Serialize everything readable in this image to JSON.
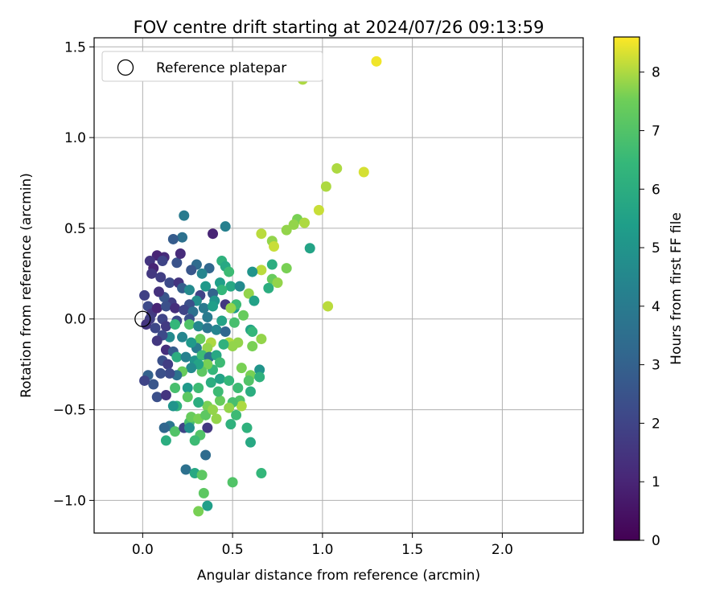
{
  "chart_data": {
    "type": "scatter",
    "title": "FOV centre drift starting at 2024/07/26 09:13:59",
    "xlabel": "Angular distance from reference (arcmin)",
    "ylabel": "Rotation from reference (arcmin)",
    "xlim": [
      -0.27,
      2.45
    ],
    "ylim": [
      -1.18,
      1.55
    ],
    "xticks": [
      0.0,
      0.5,
      1.0,
      1.5,
      2.0
    ],
    "xtick_labels": [
      "0.0",
      "0.5",
      "1.0",
      "1.5",
      "2.0"
    ],
    "yticks": [
      -1.0,
      -0.5,
      0.0,
      0.5,
      1.0,
      1.5
    ],
    "ytick_labels": [
      "−1.0",
      "−0.5",
      "0.0",
      "0.5",
      "1.0",
      "1.5"
    ],
    "grid": true,
    "legend": {
      "position": "top-left",
      "entries": [
        "Reference platepar"
      ]
    },
    "reference_point": {
      "x": 0.0,
      "y": 0.0
    },
    "colorbar": {
      "label": "Hours from first FF file",
      "range": [
        0,
        8.6
      ],
      "ticks": [
        0,
        1,
        2,
        3,
        4,
        5,
        6,
        7,
        8
      ],
      "tick_labels": [
        "0",
        "1",
        "2",
        "3",
        "4",
        "5",
        "6",
        "7",
        "8"
      ],
      "colormap": "viridis"
    },
    "points": [
      {
        "x": 1.3,
        "y": 1.42,
        "h": 8.5
      },
      {
        "x": 0.89,
        "y": 1.32,
        "h": 8.0
      },
      {
        "x": 1.08,
        "y": 0.83,
        "h": 8.0
      },
      {
        "x": 1.23,
        "y": 0.81,
        "h": 8.3
      },
      {
        "x": 1.02,
        "y": 0.73,
        "h": 8.0
      },
      {
        "x": 0.98,
        "y": 0.6,
        "h": 8.2
      },
      {
        "x": 0.86,
        "y": 0.55,
        "h": 7.6
      },
      {
        "x": 0.9,
        "y": 0.53,
        "h": 8.0
      },
      {
        "x": 0.84,
        "y": 0.52,
        "h": 7.8
      },
      {
        "x": 0.8,
        "y": 0.49,
        "h": 7.8
      },
      {
        "x": 0.66,
        "y": 0.47,
        "h": 8.1
      },
      {
        "x": 0.72,
        "y": 0.43,
        "h": 7.8
      },
      {
        "x": 0.73,
        "y": 0.4,
        "h": 8.2
      },
      {
        "x": 0.93,
        "y": 0.39,
        "h": 5.6
      },
      {
        "x": 0.72,
        "y": 0.3,
        "h": 6.0
      },
      {
        "x": 0.8,
        "y": 0.28,
        "h": 7.6
      },
      {
        "x": 0.66,
        "y": 0.27,
        "h": 8.1
      },
      {
        "x": 0.61,
        "y": 0.26,
        "h": 5.0
      },
      {
        "x": 0.72,
        "y": 0.22,
        "h": 7.4
      },
      {
        "x": 0.75,
        "y": 0.2,
        "h": 7.8
      },
      {
        "x": 0.7,
        "y": 0.17,
        "h": 6.0
      },
      {
        "x": 0.59,
        "y": 0.14,
        "h": 7.8
      },
      {
        "x": 0.62,
        "y": 0.1,
        "h": 5.5
      },
      {
        "x": 1.03,
        "y": 0.07,
        "h": 8.1
      },
      {
        "x": 0.46,
        "y": 0.51,
        "h": 4.2
      },
      {
        "x": 0.23,
        "y": 0.57,
        "h": 4.0
      },
      {
        "x": 0.22,
        "y": 0.45,
        "h": 3.6
      },
      {
        "x": 0.17,
        "y": 0.44,
        "h": 2.8
      },
      {
        "x": 0.39,
        "y": 0.47,
        "h": 1.0
      },
      {
        "x": 0.44,
        "y": 0.32,
        "h": 6.2
      },
      {
        "x": 0.46,
        "y": 0.29,
        "h": 5.8
      },
      {
        "x": 0.48,
        "y": 0.26,
        "h": 6.6
      },
      {
        "x": 0.37,
        "y": 0.28,
        "h": 3.2
      },
      {
        "x": 0.3,
        "y": 0.3,
        "h": 3.4
      },
      {
        "x": 0.27,
        "y": 0.27,
        "h": 2.6
      },
      {
        "x": 0.19,
        "y": 0.31,
        "h": 2.5
      },
      {
        "x": 0.21,
        "y": 0.36,
        "h": 1.2
      },
      {
        "x": 0.12,
        "y": 0.34,
        "h": 1.2
      },
      {
        "x": 0.08,
        "y": 0.35,
        "h": 1.0
      },
      {
        "x": 0.04,
        "y": 0.32,
        "h": 1.5
      },
      {
        "x": 0.11,
        "y": 0.32,
        "h": 2.0
      },
      {
        "x": 0.06,
        "y": 0.28,
        "h": 1.0
      },
      {
        "x": 0.05,
        "y": 0.25,
        "h": 1.6
      },
      {
        "x": 0.1,
        "y": 0.23,
        "h": 1.8
      },
      {
        "x": 0.15,
        "y": 0.2,
        "h": 2.2
      },
      {
        "x": 0.2,
        "y": 0.2,
        "h": 1.5
      },
      {
        "x": 0.22,
        "y": 0.17,
        "h": 2.9
      },
      {
        "x": 0.26,
        "y": 0.16,
        "h": 4.6
      },
      {
        "x": 0.33,
        "y": 0.25,
        "h": 4.4
      },
      {
        "x": 0.35,
        "y": 0.18,
        "h": 5.2
      },
      {
        "x": 0.43,
        "y": 0.2,
        "h": 5.4
      },
      {
        "x": 0.49,
        "y": 0.18,
        "h": 5.8
      },
      {
        "x": 0.54,
        "y": 0.18,
        "h": 4.6
      },
      {
        "x": 0.44,
        "y": 0.16,
        "h": 6.4
      },
      {
        "x": 0.39,
        "y": 0.14,
        "h": 3.1
      },
      {
        "x": 0.32,
        "y": 0.13,
        "h": 2.0
      },
      {
        "x": 0.4,
        "y": 0.1,
        "h": 5.0
      },
      {
        "x": 0.3,
        "y": 0.1,
        "h": 4.8
      },
      {
        "x": 0.26,
        "y": 0.08,
        "h": 2.4
      },
      {
        "x": 0.16,
        "y": 0.09,
        "h": 1.8
      },
      {
        "x": 0.12,
        "y": 0.12,
        "h": 2.6
      },
      {
        "x": 0.09,
        "y": 0.15,
        "h": 1.4
      },
      {
        "x": 0.01,
        "y": 0.13,
        "h": 1.9
      },
      {
        "x": 0.03,
        "y": 0.07,
        "h": 2.2
      },
      {
        "x": 0.05,
        "y": 0.03,
        "h": 1.6
      },
      {
        "x": 0.08,
        "y": 0.06,
        "h": 1.0
      },
      {
        "x": 0.13,
        "y": 0.07,
        "h": 2.4
      },
      {
        "x": 0.18,
        "y": 0.06,
        "h": 1.3
      },
      {
        "x": 0.23,
        "y": 0.05,
        "h": 2.0
      },
      {
        "x": 0.28,
        "y": 0.04,
        "h": 3.6
      },
      {
        "x": 0.34,
        "y": 0.06,
        "h": 4.0
      },
      {
        "x": 0.39,
        "y": 0.07,
        "h": 5.4
      },
      {
        "x": 0.46,
        "y": 0.08,
        "h": 1.6
      },
      {
        "x": 0.51,
        "y": 0.06,
        "h": 5.2
      },
      {
        "x": 0.52,
        "y": 0.08,
        "h": 6.6
      },
      {
        "x": 0.49,
        "y": 0.06,
        "h": 7.8
      },
      {
        "x": 0.56,
        "y": 0.02,
        "h": 7.4
      },
      {
        "x": 0.51,
        "y": -0.02,
        "h": 6.8
      },
      {
        "x": 0.44,
        "y": -0.01,
        "h": 5.6
      },
      {
        "x": 0.36,
        "y": 0.01,
        "h": 4.0
      },
      {
        "x": 0.26,
        "y": 0.0,
        "h": 2.4
      },
      {
        "x": 0.19,
        "y": -0.01,
        "h": 2.2
      },
      {
        "x": 0.11,
        "y": 0.0,
        "h": 2.0
      },
      {
        "x": 0.04,
        "y": 0.0,
        "h": 1.8
      },
      {
        "x": 0.02,
        "y": -0.03,
        "h": 1.5
      },
      {
        "x": 0.07,
        "y": -0.05,
        "h": 2.1
      },
      {
        "x": 0.13,
        "y": -0.04,
        "h": 1.7
      },
      {
        "x": 0.18,
        "y": -0.03,
        "h": 6.4
      },
      {
        "x": 0.26,
        "y": -0.03,
        "h": 7.0
      },
      {
        "x": 0.31,
        "y": -0.04,
        "h": 4.5
      },
      {
        "x": 0.36,
        "y": -0.05,
        "h": 3.8
      },
      {
        "x": 0.41,
        "y": -0.06,
        "h": 4.4
      },
      {
        "x": 0.46,
        "y": -0.07,
        "h": 3.2
      },
      {
        "x": 0.6,
        "y": -0.06,
        "h": 5.6
      },
      {
        "x": 0.61,
        "y": -0.07,
        "h": 6.4
      },
      {
        "x": 0.66,
        "y": -0.11,
        "h": 7.8
      },
      {
        "x": 0.61,
        "y": -0.15,
        "h": 7.6
      },
      {
        "x": 0.53,
        "y": -0.13,
        "h": 7.8
      },
      {
        "x": 0.48,
        "y": -0.13,
        "h": 8.0
      },
      {
        "x": 0.5,
        "y": -0.15,
        "h": 7.8
      },
      {
        "x": 0.45,
        "y": -0.14,
        "h": 6.2
      },
      {
        "x": 0.38,
        "y": -0.13,
        "h": 8.0
      },
      {
        "x": 0.32,
        "y": -0.11,
        "h": 7.4
      },
      {
        "x": 0.36,
        "y": -0.16,
        "h": 7.8
      },
      {
        "x": 0.3,
        "y": -0.16,
        "h": 4.0
      },
      {
        "x": 0.27,
        "y": -0.13,
        "h": 5.2
      },
      {
        "x": 0.22,
        "y": -0.1,
        "h": 4.4
      },
      {
        "x": 0.15,
        "y": -0.1,
        "h": 4.6
      },
      {
        "x": 0.11,
        "y": -0.09,
        "h": 2.2
      },
      {
        "x": 0.08,
        "y": -0.12,
        "h": 1.6
      },
      {
        "x": 0.13,
        "y": -0.17,
        "h": 1.3
      },
      {
        "x": 0.17,
        "y": -0.18,
        "h": 2.8
      },
      {
        "x": 0.11,
        "y": -0.23,
        "h": 2.4
      },
      {
        "x": 0.14,
        "y": -0.25,
        "h": 1.8
      },
      {
        "x": 0.19,
        "y": -0.21,
        "h": 6.0
      },
      {
        "x": 0.24,
        "y": -0.21,
        "h": 4.2
      },
      {
        "x": 0.29,
        "y": -0.23,
        "h": 5.0
      },
      {
        "x": 0.33,
        "y": -0.2,
        "h": 6.6
      },
      {
        "x": 0.37,
        "y": -0.21,
        "h": 3.6
      },
      {
        "x": 0.41,
        "y": -0.2,
        "h": 5.8
      },
      {
        "x": 0.43,
        "y": -0.24,
        "h": 6.6
      },
      {
        "x": 0.39,
        "y": -0.28,
        "h": 6.4
      },
      {
        "x": 0.36,
        "y": -0.25,
        "h": 7.6
      },
      {
        "x": 0.33,
        "y": -0.29,
        "h": 7.2
      },
      {
        "x": 0.31,
        "y": -0.25,
        "h": 5.6
      },
      {
        "x": 0.27,
        "y": -0.27,
        "h": 4.6
      },
      {
        "x": 0.22,
        "y": -0.29,
        "h": 7.4
      },
      {
        "x": 0.19,
        "y": -0.31,
        "h": 3.6
      },
      {
        "x": 0.15,
        "y": -0.3,
        "h": 2.2
      },
      {
        "x": 0.1,
        "y": -0.3,
        "h": 2.4
      },
      {
        "x": 0.03,
        "y": -0.31,
        "h": 3.0
      },
      {
        "x": 0.06,
        "y": -0.36,
        "h": 2.6
      },
      {
        "x": 0.01,
        "y": -0.34,
        "h": 2.0
      },
      {
        "x": 0.08,
        "y": -0.43,
        "h": 2.4
      },
      {
        "x": 0.13,
        "y": -0.42,
        "h": 1.5
      },
      {
        "x": 0.18,
        "y": -0.38,
        "h": 6.8
      },
      {
        "x": 0.25,
        "y": -0.38,
        "h": 5.2
      },
      {
        "x": 0.31,
        "y": -0.38,
        "h": 6.6
      },
      {
        "x": 0.38,
        "y": -0.35,
        "h": 6.0
      },
      {
        "x": 0.43,
        "y": -0.33,
        "h": 5.6
      },
      {
        "x": 0.48,
        "y": -0.34,
        "h": 6.4
      },
      {
        "x": 0.53,
        "y": -0.38,
        "h": 6.6
      },
      {
        "x": 0.55,
        "y": -0.27,
        "h": 7.6
      },
      {
        "x": 0.6,
        "y": -0.31,
        "h": 7.6
      },
      {
        "x": 0.65,
        "y": -0.28,
        "h": 5.0
      },
      {
        "x": 0.65,
        "y": -0.32,
        "h": 6.2
      },
      {
        "x": 0.59,
        "y": -0.34,
        "h": 7.0
      },
      {
        "x": 0.6,
        "y": -0.4,
        "h": 6.0
      },
      {
        "x": 0.54,
        "y": -0.45,
        "h": 7.0
      },
      {
        "x": 0.55,
        "y": -0.48,
        "h": 8.0
      },
      {
        "x": 0.5,
        "y": -0.46,
        "h": 6.8
      },
      {
        "x": 0.48,
        "y": -0.49,
        "h": 7.8
      },
      {
        "x": 0.43,
        "y": -0.45,
        "h": 7.4
      },
      {
        "x": 0.42,
        "y": -0.4,
        "h": 6.6
      },
      {
        "x": 0.36,
        "y": -0.48,
        "h": 7.6
      },
      {
        "x": 0.31,
        "y": -0.46,
        "h": 6.0
      },
      {
        "x": 0.25,
        "y": -0.43,
        "h": 7.2
      },
      {
        "x": 0.19,
        "y": -0.48,
        "h": 6.2
      },
      {
        "x": 0.17,
        "y": -0.48,
        "h": 5.0
      },
      {
        "x": 0.15,
        "y": -0.59,
        "h": 3.8
      },
      {
        "x": 0.12,
        "y": -0.6,
        "h": 3.2
      },
      {
        "x": 0.18,
        "y": -0.62,
        "h": 7.0
      },
      {
        "x": 0.23,
        "y": -0.6,
        "h": 2.0
      },
      {
        "x": 0.26,
        "y": -0.57,
        "h": 6.8
      },
      {
        "x": 0.27,
        "y": -0.54,
        "h": 7.4
      },
      {
        "x": 0.31,
        "y": -0.55,
        "h": 7.6
      },
      {
        "x": 0.35,
        "y": -0.53,
        "h": 7.2
      },
      {
        "x": 0.39,
        "y": -0.5,
        "h": 7.8
      },
      {
        "x": 0.41,
        "y": -0.55,
        "h": 7.8
      },
      {
        "x": 0.49,
        "y": -0.58,
        "h": 6.2
      },
      {
        "x": 0.52,
        "y": -0.53,
        "h": 6.6
      },
      {
        "x": 0.58,
        "y": -0.6,
        "h": 6.2
      },
      {
        "x": 0.6,
        "y": -0.68,
        "h": 5.8
      },
      {
        "x": 0.36,
        "y": -0.6,
        "h": 1.6
      },
      {
        "x": 0.32,
        "y": -0.64,
        "h": 7.0
      },
      {
        "x": 0.29,
        "y": -0.67,
        "h": 6.6
      },
      {
        "x": 0.26,
        "y": -0.6,
        "h": 4.8
      },
      {
        "x": 0.13,
        "y": -0.67,
        "h": 6.0
      },
      {
        "x": 0.35,
        "y": -0.75,
        "h": 3.4
      },
      {
        "x": 0.24,
        "y": -0.83,
        "h": 3.6
      },
      {
        "x": 0.29,
        "y": -0.85,
        "h": 5.8
      },
      {
        "x": 0.33,
        "y": -0.86,
        "h": 7.2
      },
      {
        "x": 0.66,
        "y": -0.85,
        "h": 6.4
      },
      {
        "x": 0.5,
        "y": -0.9,
        "h": 7.0
      },
      {
        "x": 0.34,
        "y": -0.96,
        "h": 7.2
      },
      {
        "x": 0.36,
        "y": -1.03,
        "h": 5.4
      },
      {
        "x": 0.31,
        "y": -1.06,
        "h": 7.6
      }
    ]
  }
}
